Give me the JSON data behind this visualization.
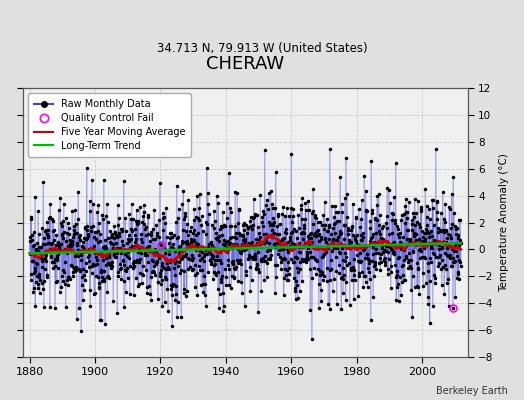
{
  "title": "CHERAW",
  "subtitle": "34.713 N, 79.913 W (United States)",
  "credit": "Berkeley Earth",
  "ylabel": "Temperature Anomaly (°C)",
  "xlim": [
    1878,
    2014
  ],
  "ylim": [
    -8,
    12
  ],
  "yticks": [
    -8,
    -6,
    -4,
    -2,
    0,
    2,
    4,
    6,
    8,
    10,
    12
  ],
  "xticks": [
    1880,
    1900,
    1920,
    1940,
    1960,
    1980,
    2000
  ],
  "start_year": 1880,
  "end_year": 2012,
  "seed": 42,
  "noise_std": 1.6,
  "moving_avg_window": 60,
  "line_color": "#4444dd",
  "dot_color": "#000000",
  "ma_color": "#cc0000",
  "trend_color": "#00bb00",
  "qc_color": "#ff00ff",
  "bg_color": "#e0e0e0",
  "plot_bg_color": "#f0f0f0",
  "grid_color": "#cccccc",
  "legend_edge_color": "#aaaaaa",
  "figsize": [
    5.24,
    4.0
  ],
  "dpi": 100
}
